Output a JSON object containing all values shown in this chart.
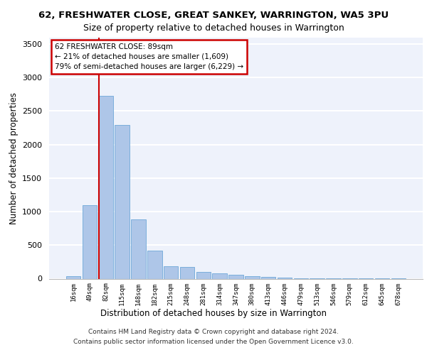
{
  "title1": "62, FRESHWATER CLOSE, GREAT SANKEY, WARRINGTON, WA5 3PU",
  "title2": "Size of property relative to detached houses in Warrington",
  "xlabel": "Distribution of detached houses by size in Warrington",
  "ylabel": "Number of detached properties",
  "categories": [
    "16sqm",
    "49sqm",
    "82sqm",
    "115sqm",
    "148sqm",
    "182sqm",
    "215sqm",
    "248sqm",
    "281sqm",
    "314sqm",
    "347sqm",
    "380sqm",
    "413sqm",
    "446sqm",
    "479sqm",
    "513sqm",
    "546sqm",
    "579sqm",
    "612sqm",
    "645sqm",
    "678sqm"
  ],
  "values": [
    35,
    1100,
    2730,
    2290,
    880,
    420,
    185,
    175,
    100,
    75,
    55,
    40,
    30,
    20,
    10,
    8,
    5,
    4,
    3,
    2,
    2
  ],
  "bar_color": "#aec6e8",
  "bar_edge_color": "#6ea8d8",
  "vline_color": "#cc0000",
  "annotation_line1": "62 FRESHWATER CLOSE: 89sqm",
  "annotation_line2": "← 21% of detached houses are smaller (1,609)",
  "annotation_line3": "79% of semi-detached houses are larger (6,229) →",
  "annotation_box_facecolor": "#ffffff",
  "annotation_box_edgecolor": "#cc0000",
  "background_color": "#eef2fb",
  "grid_color": "#ffffff",
  "footer1": "Contains HM Land Registry data © Crown copyright and database right 2024.",
  "footer2": "Contains public sector information licensed under the Open Government Licence v3.0.",
  "ylim": [
    0,
    3600
  ],
  "yticks": [
    0,
    500,
    1000,
    1500,
    2000,
    2500,
    3000,
    3500
  ]
}
